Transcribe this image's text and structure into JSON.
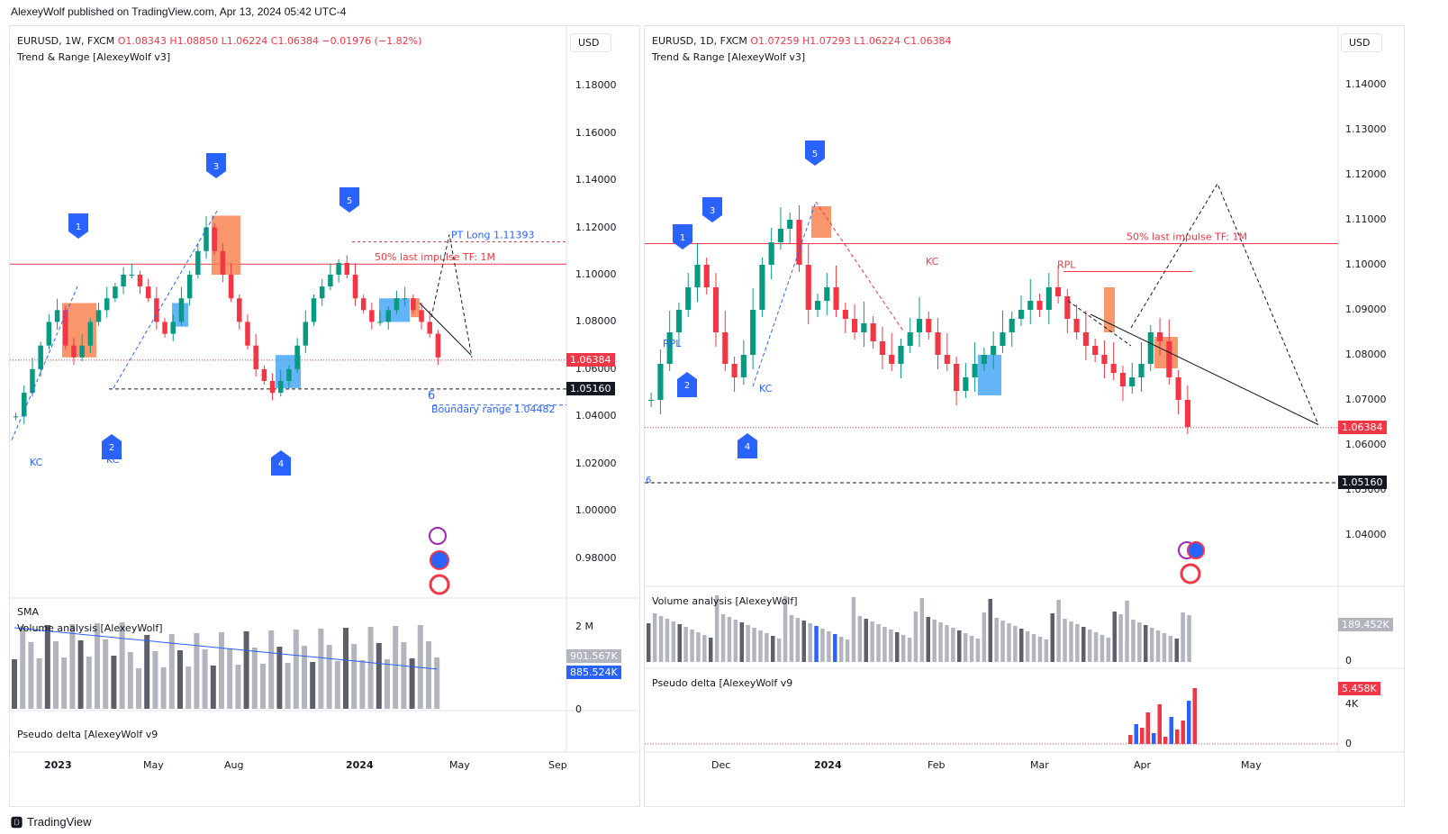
{
  "publisher_line": "AlexeyWolf published on TradingView.com, Apr 13, 2024 05:42 UTC-4",
  "footer": {
    "brand": "TradingView",
    "logo_icon": "tradingview-logo-icon"
  },
  "colors": {
    "up": "#089981",
    "down": "#f23645",
    "blue_marker": "#2962ff",
    "orange_box": "#f77c47",
    "blue_box": "#2196f3",
    "level_line": "#f23645"
  },
  "left": {
    "symbol": "EURUSD, 1W, FXCM",
    "open": "O1.08343",
    "high": "H1.08850",
    "low": "L1.06224",
    "close": "C1.06384",
    "change": "−0.01976 (−1.82%)",
    "indicator": "Trend & Range [AlexeyWolf v3]",
    "currency": "USD",
    "y_ticks": [
      "1.18000",
      "1.16000",
      "1.14000",
      "1.12000",
      "1.10000",
      "1.08000",
      "1.06000",
      "1.04000",
      "1.02000",
      "1.00000",
      "0.98000"
    ],
    "x_ticks": [
      "2023",
      "May",
      "Aug",
      "2024",
      "May",
      "Sep"
    ],
    "price_tag": "1.06384",
    "level_tag": "1.05160",
    "annotations": {
      "pt_long": "PT Long 1.11393",
      "half_impulse": "50% last impulse TF: 1M",
      "boundary": "Boundary range 1.04482",
      "kc1": "KC",
      "kc2": "KC",
      "six": "6"
    },
    "markers": [
      "1",
      "2",
      "3",
      "4",
      "5"
    ],
    "volume_title": "Volume analysis [AlexeyWolf]",
    "sma_label": "SMA",
    "volume_ticks": [
      "2 M",
      "0"
    ],
    "volume_tag1": "901.567K",
    "volume_tag2": "885.524K",
    "delta_title": "Pseudo delta [AlexeyWolf v9"
  },
  "right": {
    "symbol": "EURUSD, 1D, FXCM",
    "open": "O1.07259",
    "high": "H1.07293",
    "low": "L1.06224",
    "close": "C1.06384",
    "indicator": "Trend & Range [AlexeyWolf v3]",
    "currency": "USD",
    "y_ticks": [
      "1.14000",
      "1.13000",
      "1.12000",
      "1.11000",
      "1.10000",
      "1.09000",
      "1.08000",
      "1.07000",
      "1.06000",
      "1.05000",
      "1.04000"
    ],
    "x_ticks": [
      "Dec",
      "2024",
      "Feb",
      "Mar",
      "Apr",
      "May"
    ],
    "price_tag": "1.06384",
    "level_tag": "1.05160",
    "annotations": {
      "half_impulse": "50% last impulse TF: 1M",
      "rpl1": "RPL",
      "rpl2": "RPL",
      "kc1": "KC",
      "kc2": "KC",
      "six": "6"
    },
    "markers": [
      "1",
      "2",
      "3",
      "4",
      "5"
    ],
    "volume_title": "Volume analysis [AlexeyWolf]",
    "volume_ticks": [
      "0"
    ],
    "volume_tag": "189.452K",
    "delta_title": "Pseudo delta [AlexeyWolf v9",
    "delta_ticks": [
      "4K",
      "0"
    ],
    "delta_tag": "5.458K"
  },
  "chart_data": [
    {
      "type": "candlestick",
      "title": "EURUSD, 1W, FXCM",
      "ylim": [
        0.965,
        1.19
      ],
      "x_ticks": [
        "2023",
        "May",
        "Aug",
        "2024",
        "May",
        "Sep"
      ],
      "levels": {
        "last_price": 1.06384,
        "support": 1.0516,
        "pt_long": 1.11393,
        "half_impulse": 1.1045,
        "boundary": 1.04482
      },
      "close_path": [
        1.04,
        1.05,
        1.06,
        1.07,
        1.08,
        1.085,
        1.07,
        1.065,
        1.07,
        1.08,
        1.085,
        1.09,
        1.095,
        1.1,
        1.1,
        1.095,
        1.09,
        1.08,
        1.075,
        1.08,
        1.09,
        1.1,
        1.11,
        1.12,
        1.11,
        1.1,
        1.09,
        1.08,
        1.07,
        1.06,
        1.055,
        1.05,
        1.055,
        1.06,
        1.07,
        1.08,
        1.09,
        1.095,
        1.1,
        1.105,
        1.1,
        1.09,
        1.085,
        1.08,
        1.08,
        1.085,
        1.09,
        1.09,
        1.085,
        1.08,
        1.075,
        1.065
      ]
    },
    {
      "type": "candlestick",
      "title": "EURUSD, 1D, FXCM",
      "ylim": [
        1.033,
        1.145
      ],
      "x_ticks": [
        "Dec",
        "2024",
        "Feb",
        "Mar",
        "Apr",
        "May"
      ],
      "levels": {
        "last_price": 1.06384,
        "support": 1.0516,
        "half_impulse": 1.1047
      },
      "close_path": [
        1.07,
        1.078,
        1.085,
        1.09,
        1.095,
        1.1,
        1.095,
        1.085,
        1.078,
        1.075,
        1.08,
        1.09,
        1.1,
        1.105,
        1.108,
        1.11,
        1.1,
        1.09,
        1.092,
        1.095,
        1.09,
        1.088,
        1.085,
        1.087,
        1.083,
        1.08,
        1.078,
        1.082,
        1.085,
        1.088,
        1.085,
        1.08,
        1.078,
        1.072,
        1.075,
        1.078,
        1.08,
        1.082,
        1.085,
        1.088,
        1.09,
        1.092,
        1.09,
        1.095,
        1.093,
        1.088,
        1.085,
        1.082,
        1.08,
        1.078,
        1.076,
        1.073,
        1.075,
        1.078,
        1.085,
        1.083,
        1.075,
        1.07,
        1.064
      ]
    }
  ]
}
